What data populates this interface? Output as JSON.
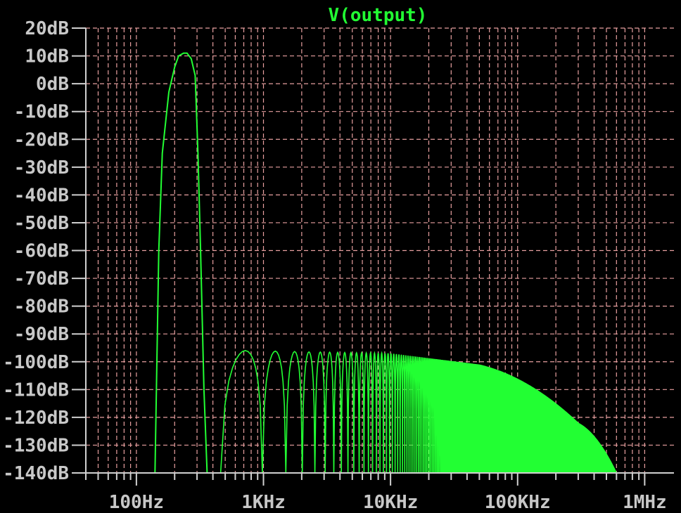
{
  "chart_data": {
    "type": "line",
    "title": "V(output)",
    "xlabel": "",
    "ylabel": "",
    "x_scale": "log",
    "xlim_hz": [
      40,
      1700000
    ],
    "ylim_db": [
      -140,
      20
    ],
    "grid": true,
    "colors": {
      "background": "#000000",
      "grid": "#e8a0a0",
      "trace": "#22ff33",
      "axis_text": "#c8c8c8",
      "title": "#22ff33"
    },
    "y_ticks": [
      {
        "value": 20,
        "label": "20dB"
      },
      {
        "value": 10,
        "label": "10dB"
      },
      {
        "value": 0,
        "label": "0dB"
      },
      {
        "value": -10,
        "label": "-10dB"
      },
      {
        "value": -20,
        "label": "-20dB"
      },
      {
        "value": -30,
        "label": "-30dB"
      },
      {
        "value": -40,
        "label": "-40dB"
      },
      {
        "value": -50,
        "label": "-50dB"
      },
      {
        "value": -60,
        "label": "-60dB"
      },
      {
        "value": -70,
        "label": "-70dB"
      },
      {
        "value": -80,
        "label": "-80dB"
      },
      {
        "value": -90,
        "label": "-90dB"
      },
      {
        "value": -100,
        "label": "-100dB"
      },
      {
        "value": -110,
        "label": "-110dB"
      },
      {
        "value": -120,
        "label": "-120dB"
      },
      {
        "value": -130,
        "label": "-130dB"
      },
      {
        "value": -140,
        "label": "-140dB"
      }
    ],
    "x_ticks": [
      {
        "value": 100,
        "label": "100Hz"
      },
      {
        "value": 1000,
        "label": "1KHz"
      },
      {
        "value": 10000,
        "label": "10KHz"
      },
      {
        "value": 100000,
        "label": "100KHz"
      },
      {
        "value": 1000000,
        "label": "1MHz"
      }
    ],
    "series": [
      {
        "name": "V(output)",
        "main_lobe": {
          "x_hz": [
            140,
            150,
            160,
            180,
            200,
            215,
            235,
            250,
            270,
            290,
            305,
            320,
            340,
            360
          ],
          "y_db": [
            -140,
            -60,
            -25,
            -3,
            6,
            10,
            11,
            11,
            9,
            3,
            -25,
            -60,
            -110,
            -140
          ]
        },
        "sidelobes": {
          "first_peak_hz": 720,
          "peak_spacing_hz": 520,
          "peak_db_at_low_freq": -96,
          "envelope_db_at_10khz": -97,
          "envelope_db_at_50khz": -101,
          "envelope_db_at_300khz": -122,
          "envelope_reaches_floor_hz": 600000
        }
      }
    ]
  }
}
